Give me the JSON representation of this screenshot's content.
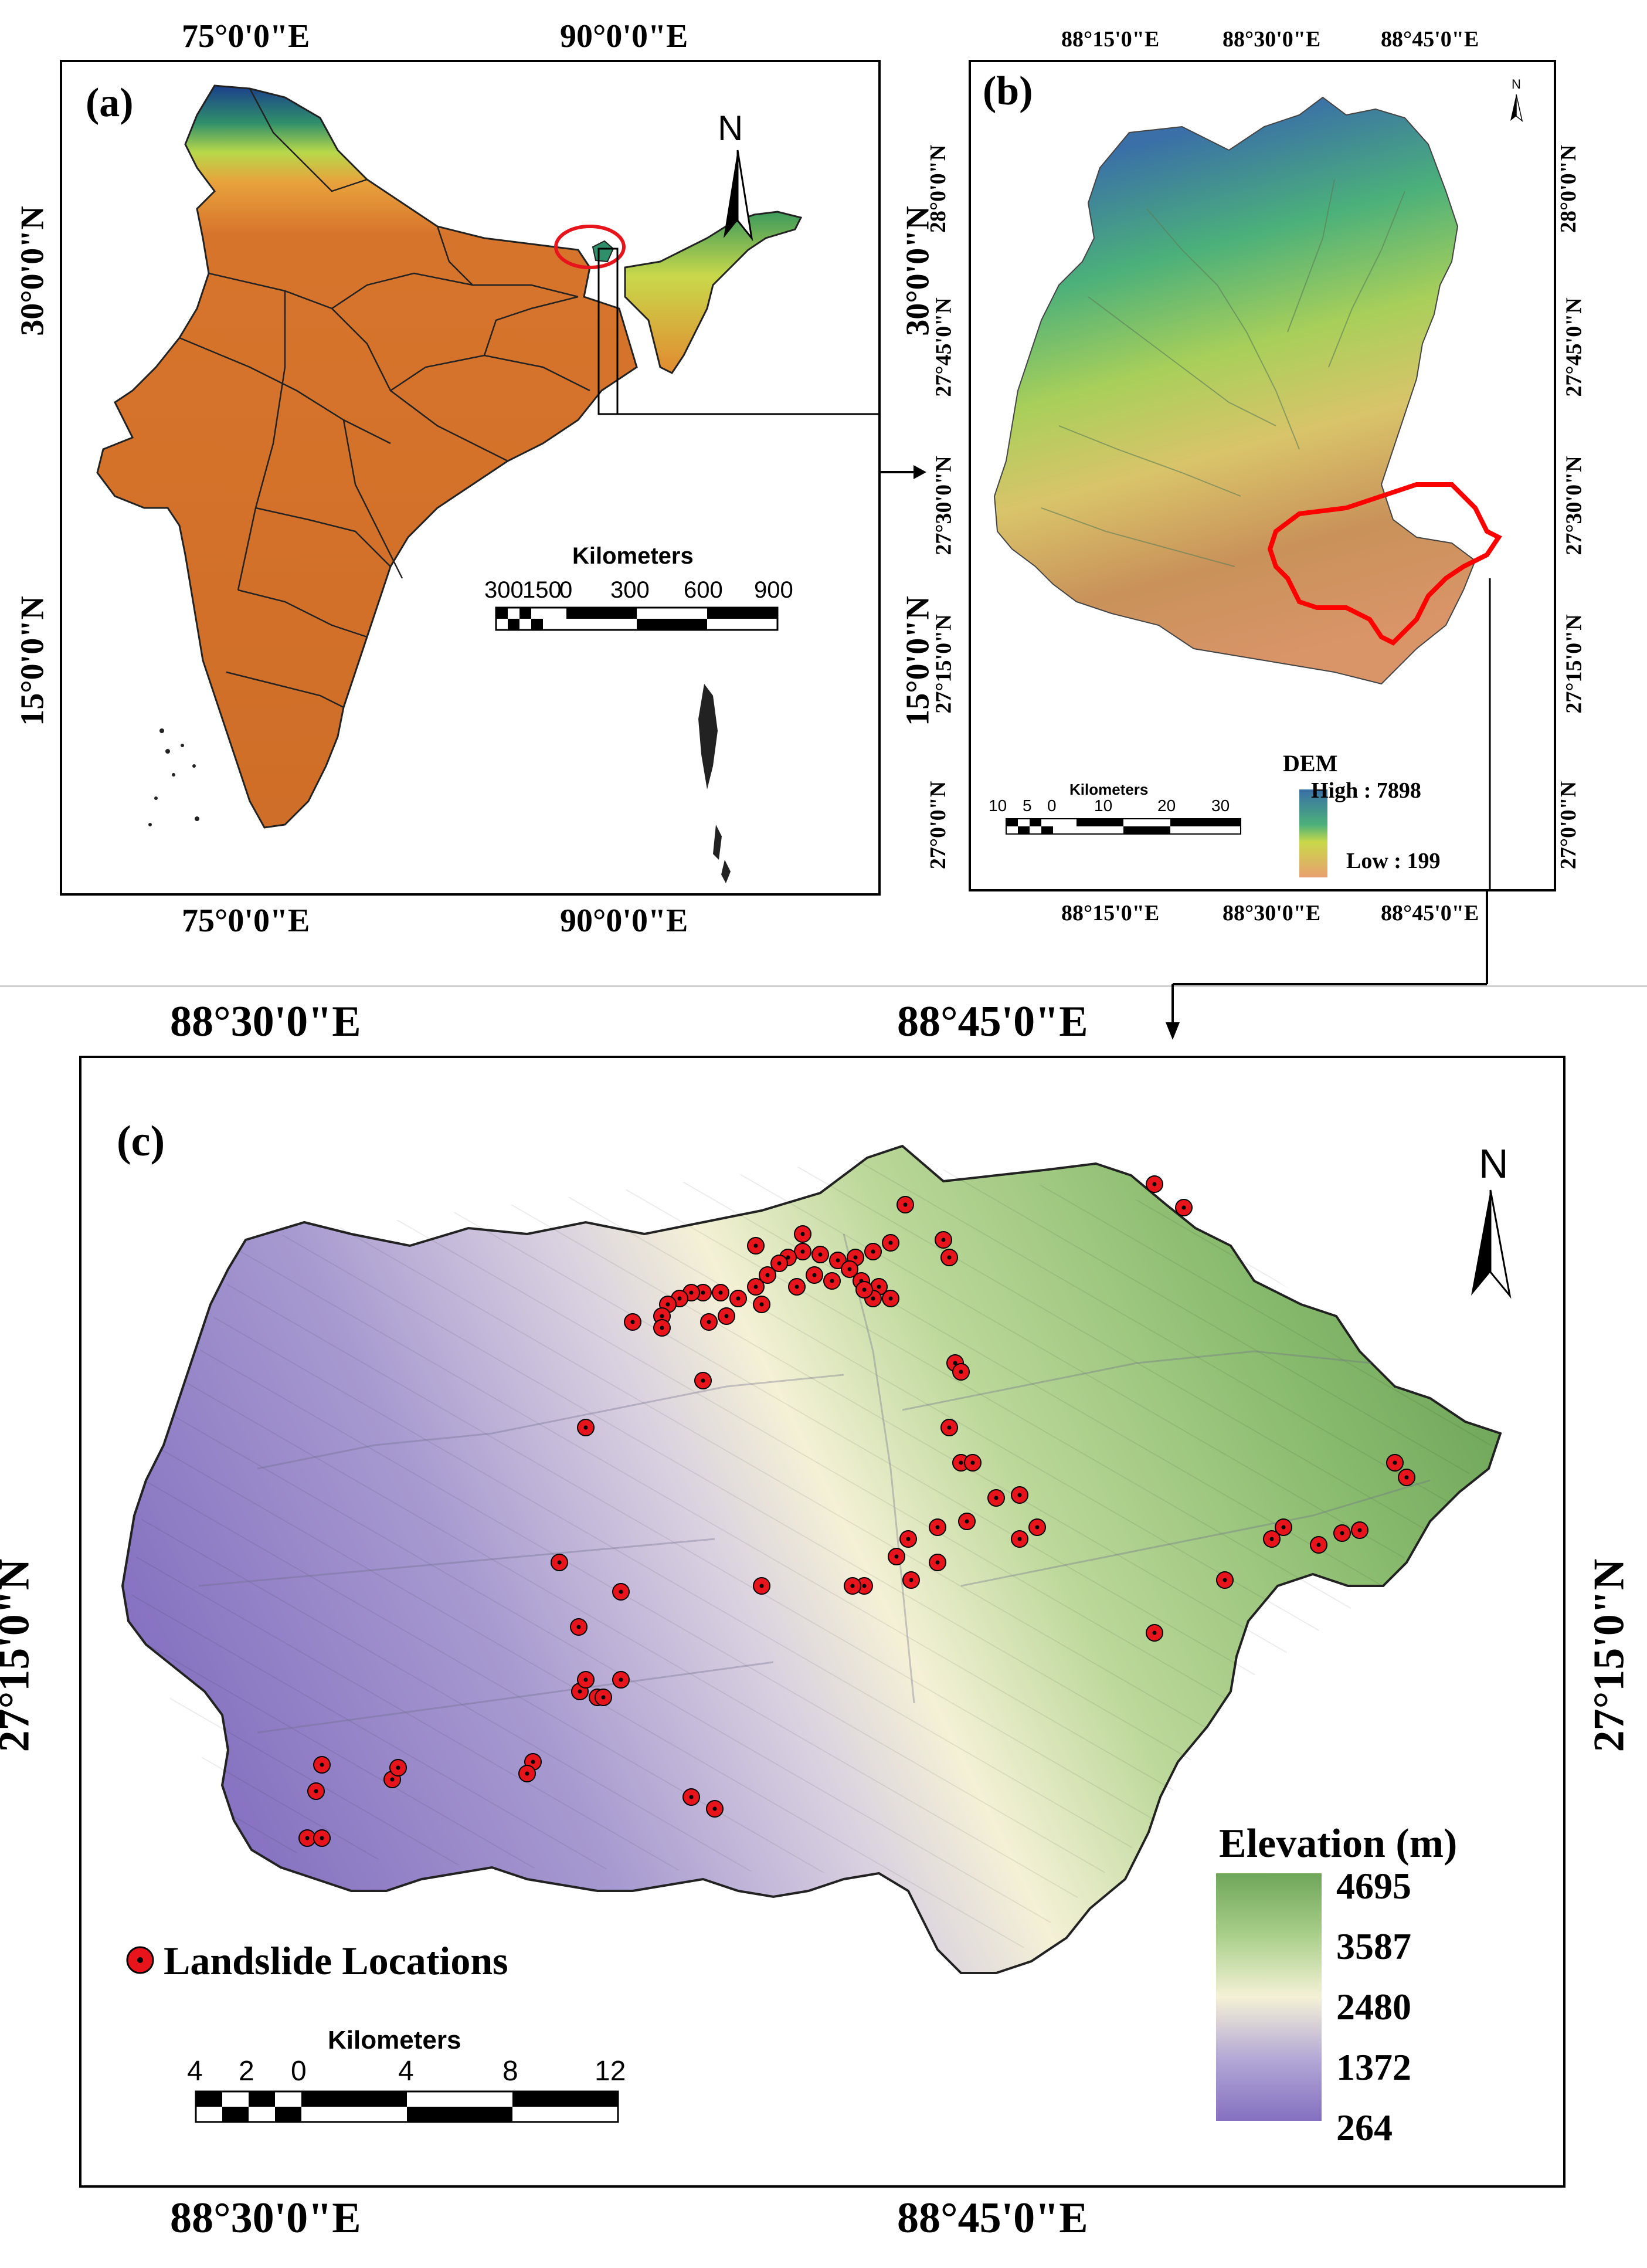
{
  "panel_a": {
    "label": "(a)",
    "top_ticks": [
      "75°0'0\"E",
      "90°0'0\"E"
    ],
    "bottom_ticks": [
      "75°0'0\"E",
      "90°0'0\"E"
    ],
    "left_ticks": [
      "30°0'0\"N",
      "15°0'0\"N"
    ],
    "right_ticks": [
      "30°0'0\"N",
      "15°0'0\"N"
    ],
    "north": "N",
    "scale_title": "Kilometers",
    "scale_ticks": [
      "300",
      "150",
      "0",
      "300",
      "600",
      "900"
    ],
    "colors": {
      "low": "#d7742c",
      "mid": "#e6c84a",
      "high": "#1b3f8c"
    }
  },
  "panel_b": {
    "label": "(b)",
    "top_ticks": [
      "88°15'0\"E",
      "88°30'0\"E",
      "88°45'0\"E"
    ],
    "bottom_ticks": [
      "88°15'0\"E",
      "88°30'0\"E",
      "88°45'0\"E"
    ],
    "left_ticks": [
      "28°0'0\"N",
      "27°45'0\"N",
      "27°30'0\"N",
      "27°15'0\"N",
      "27°0'0\"N"
    ],
    "right_ticks": [
      "28°0'0\"N",
      "27°45'0\"N",
      "27°30'0\"N",
      "27°15'0\"N",
      "27°0'0\"N"
    ],
    "north": "N",
    "scale_title": "Kilometers",
    "scale_ticks": [
      "10",
      "5",
      "0",
      "10",
      "20",
      "30"
    ],
    "legend_title": "DEM",
    "legend_high": "High : 7898",
    "legend_low": "Low : 199",
    "highlight_color": "#ff0000"
  },
  "panel_c": {
    "label": "(c)",
    "top_ticks": [
      "88°30'0\"E",
      "88°45'0\"E"
    ],
    "bottom_ticks": [
      "88°30'0\"E",
      "88°45'0\"E"
    ],
    "left_tick": "27°15'0\"N",
    "right_tick": "27°15'0\"N",
    "north": "N",
    "legend_title": "Elevation (m)",
    "legend_values": [
      "4695",
      "3587",
      "2480",
      "1372",
      "264"
    ],
    "landslide_label": "Landslide Locations",
    "scale_title": "Kilometers",
    "scale_ticks": [
      "4",
      "2",
      "0",
      "4",
      "8",
      "12"
    ],
    "colors": {
      "high": "#6fa65a",
      "mid": "#f4f1d6",
      "low": "#8470c0",
      "point": "#e8141c"
    }
  }
}
